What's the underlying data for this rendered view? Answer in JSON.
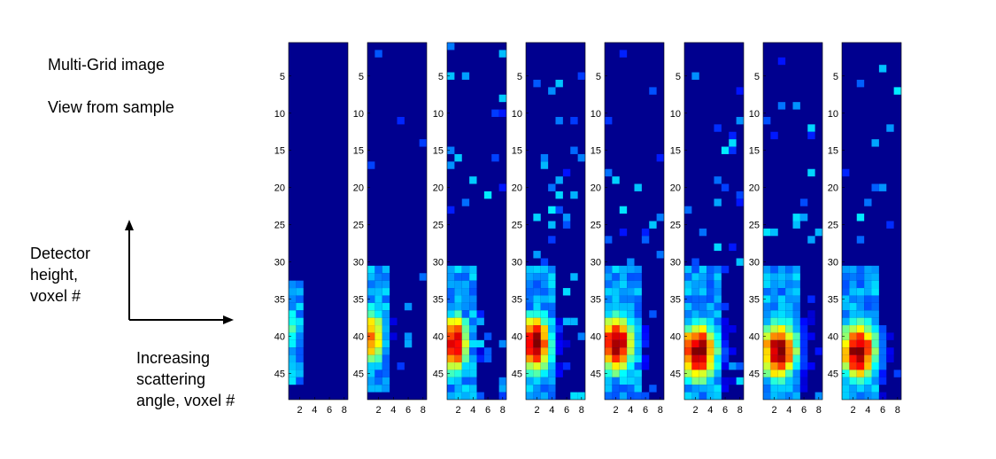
{
  "annotations": {
    "title": "Multi-Grid image",
    "view": "View from sample",
    "y_lines": [
      "Detector",
      "height,",
      "voxel #"
    ],
    "x_lines": [
      "Increasing",
      "scattering",
      "angle, voxel #"
    ]
  },
  "chart_data": {
    "type": "heatmap",
    "panel_count": 8,
    "x_range": [
      1,
      8
    ],
    "y_range": [
      1,
      48
    ],
    "y_ticks": [
      5,
      10,
      15,
      20,
      25,
      30,
      35,
      40,
      45
    ],
    "x_ticks": [
      2,
      4,
      6,
      8
    ],
    "colormap": "jet",
    "background_color": "#00008F",
    "hot_spots": [
      {
        "panel": 1,
        "rows": [
          33,
          46
        ],
        "peak_row": 39,
        "peak_col": 1,
        "peak": 0.45,
        "width": 1.2
      },
      {
        "panel": 2,
        "rows": [
          31,
          47
        ],
        "peak_row": 40,
        "peak_col": 1.3,
        "peak": 0.78,
        "width": 1.6
      },
      {
        "panel": 3,
        "rows": [
          31,
          48
        ],
        "peak_row": 41,
        "peak_col": 1.6,
        "peak": 0.95,
        "width": 2.0
      },
      {
        "panel": 4,
        "rows": [
          31,
          48
        ],
        "peak_row": 41,
        "peak_col": 1.8,
        "peak": 1.0,
        "width": 2.3
      },
      {
        "panel": 5,
        "rows": [
          31,
          48
        ],
        "peak_row": 41,
        "peak_col": 2.1,
        "peak": 1.0,
        "width": 2.6
      },
      {
        "panel": 6,
        "rows": [
          31,
          48
        ],
        "peak_row": 42,
        "peak_col": 2.4,
        "peak": 1.0,
        "width": 2.8
      },
      {
        "panel": 7,
        "rows": [
          31,
          48
        ],
        "peak_row": 42,
        "peak_col": 2.6,
        "peak": 1.0,
        "width": 2.8
      },
      {
        "panel": 8,
        "rows": [
          31,
          48
        ],
        "peak_row": 42,
        "peak_col": 2.7,
        "peak": 1.0,
        "width": 2.8
      }
    ],
    "noise_level": [
      0.0,
      0.05,
      0.25,
      0.3,
      0.32,
      0.35,
      0.3,
      0.28
    ]
  }
}
